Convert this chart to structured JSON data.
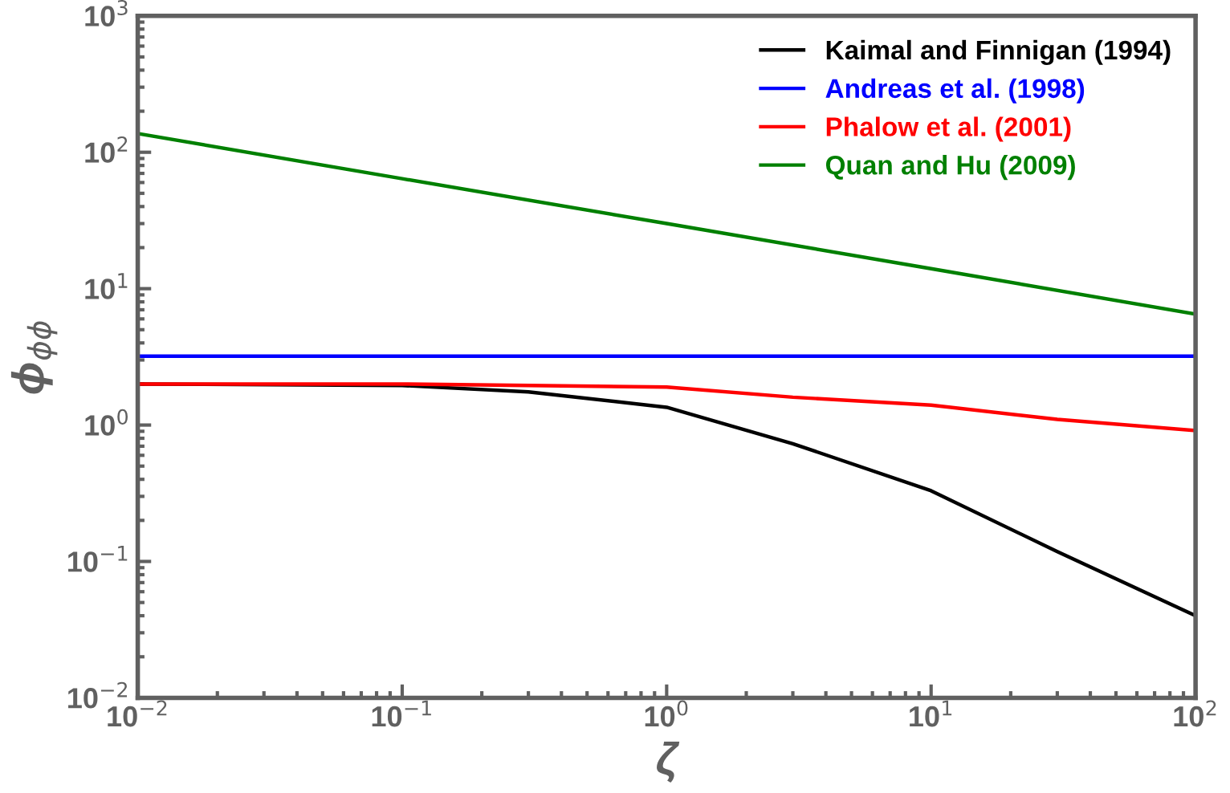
{
  "chart_data": {
    "type": "line",
    "xlabel": "ζ",
    "ylabel": "ϕ$_{ϕϕ}$",
    "log": "xy",
    "xlim": [
      0.01,
      100
    ],
    "ylim": [
      0.01,
      1000
    ],
    "xticks": [
      {
        "value": 0.01,
        "label": "10$^{−2}$"
      },
      {
        "value": 0.1,
        "label": "10$^{−1}$"
      },
      {
        "value": 1,
        "label": "10$^{0}$"
      },
      {
        "value": 10,
        "label": "10$^{1}$"
      },
      {
        "value": 100,
        "label": "10$^{2}$"
      }
    ],
    "yticks": [
      {
        "value": 0.01,
        "label": "10$^{−2}$"
      },
      {
        "value": 0.1,
        "label": "10$^{−1}$"
      },
      {
        "value": 1,
        "label": "10$^{0}$"
      },
      {
        "value": 10,
        "label": "10$^{1}$"
      },
      {
        "value": 100,
        "label": "10$^{2}$"
      },
      {
        "value": 1000,
        "label": "10$^{3}$"
      }
    ],
    "grid": false,
    "legend": "top right",
    "marker": "none",
    "line_style": "solid",
    "series": [
      {
        "name": "Kaimal and Finnigan (1994)",
        "color": "#000000",
        "x": [
          0.01,
          0.1,
          0.3,
          1,
          3,
          10,
          30,
          100
        ],
        "values": [
          2.0,
          1.95,
          1.75,
          1.35,
          0.73,
          0.33,
          0.118,
          0.04
        ]
      },
      {
        "name": "Andreas et al. (1998)",
        "color": "#0000ff",
        "x": [
          0.01,
          100
        ],
        "values": [
          3.2,
          3.2
        ]
      },
      {
        "name": "Phalow et al. (2001)",
        "color": "#ff0000",
        "x": [
          0.01,
          0.03,
          0.1,
          0.3,
          1,
          3,
          10,
          30,
          100
        ],
        "values": [
          2.0,
          2.0,
          2.0,
          1.95,
          1.9,
          1.6,
          1.4,
          1.1,
          0.91
        ]
      },
      {
        "name": "Quan and Hu (2009)",
        "color": "#008000",
        "x": [
          0.01,
          0.1,
          1,
          10,
          100
        ],
        "values": [
          137,
          64,
          30,
          14,
          6.5
        ]
      }
    ]
  }
}
